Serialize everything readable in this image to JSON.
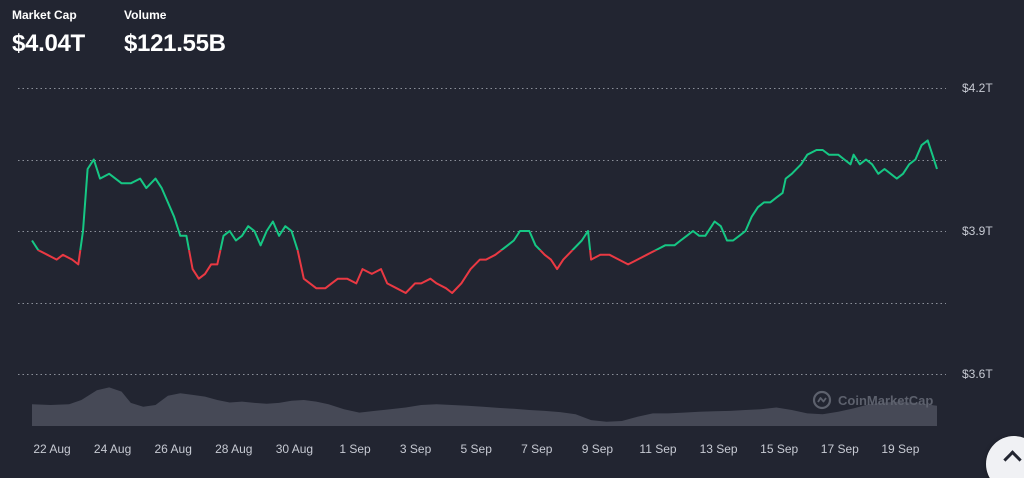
{
  "stats": {
    "market_cap_label": "Market Cap",
    "market_cap_value": "$4.04T",
    "volume_label": "Volume",
    "volume_value": "$121.55B"
  },
  "watermark": "CoinMarketCap",
  "colors": {
    "background": "#222531",
    "up": "#16c784",
    "down": "#ea3943",
    "grid": "#b8bcc6",
    "axis_text": "#c7cad3",
    "volume": "#4a4e5b"
  },
  "icons": {
    "logo": "coinmarketcap-logo-icon",
    "scroll_top": "chevron-up-icon"
  },
  "chart_data": {
    "type": "line",
    "baseline": 3.86,
    "ylim": [
      3.6,
      4.2
    ],
    "y_ticks": [
      3.6,
      3.9,
      4.2
    ],
    "y_tick_labels": [
      "$3.6T",
      "$3.9T",
      "$4.2T"
    ],
    "x_tick_labels": [
      "22 Aug",
      "24 Aug",
      "26 Aug",
      "28 Aug",
      "30 Aug",
      "1 Sep",
      "3 Sep",
      "5 Sep",
      "7 Sep",
      "9 Sep",
      "11 Sep",
      "13 Sep",
      "15 Sep",
      "17 Sep",
      "19 Sep"
    ],
    "x_domain": [
      21.4,
      50.7
    ],
    "grid": true,
    "series": [
      {
        "values_unit": "trillion USD",
        "points": [
          [
            21.4,
            3.88
          ],
          [
            21.6,
            3.86
          ],
          [
            21.9,
            3.85
          ],
          [
            22.2,
            3.84
          ],
          [
            22.4,
            3.85
          ],
          [
            22.7,
            3.84
          ],
          [
            22.9,
            3.83
          ],
          [
            23.05,
            3.9
          ],
          [
            23.2,
            4.03
          ],
          [
            23.4,
            4.05
          ],
          [
            23.6,
            4.01
          ],
          [
            23.9,
            4.02
          ],
          [
            24.3,
            4.0
          ],
          [
            24.6,
            4.0
          ],
          [
            24.9,
            4.01
          ],
          [
            25.1,
            3.99
          ],
          [
            25.4,
            4.01
          ],
          [
            25.6,
            3.99
          ],
          [
            25.8,
            3.96
          ],
          [
            26.0,
            3.93
          ],
          [
            26.2,
            3.89
          ],
          [
            26.4,
            3.89
          ],
          [
            26.6,
            3.82
          ],
          [
            26.8,
            3.8
          ],
          [
            27.0,
            3.81
          ],
          [
            27.2,
            3.83
          ],
          [
            27.4,
            3.83
          ],
          [
            27.6,
            3.89
          ],
          [
            27.8,
            3.9
          ],
          [
            28.0,
            3.88
          ],
          [
            28.2,
            3.89
          ],
          [
            28.4,
            3.91
          ],
          [
            28.6,
            3.9
          ],
          [
            28.8,
            3.87
          ],
          [
            29.0,
            3.9
          ],
          [
            29.2,
            3.92
          ],
          [
            29.4,
            3.89
          ],
          [
            29.6,
            3.91
          ],
          [
            29.8,
            3.9
          ],
          [
            30.0,
            3.86
          ],
          [
            30.2,
            3.8
          ],
          [
            30.4,
            3.79
          ],
          [
            30.6,
            3.78
          ],
          [
            30.9,
            3.78
          ],
          [
            31.1,
            3.79
          ],
          [
            31.3,
            3.8
          ],
          [
            31.6,
            3.8
          ],
          [
            31.9,
            3.79
          ],
          [
            32.1,
            3.82
          ],
          [
            32.4,
            3.81
          ],
          [
            32.7,
            3.82
          ],
          [
            32.9,
            3.79
          ],
          [
            33.2,
            3.78
          ],
          [
            33.5,
            3.77
          ],
          [
            33.8,
            3.79
          ],
          [
            34.0,
            3.79
          ],
          [
            34.3,
            3.8
          ],
          [
            34.5,
            3.79
          ],
          [
            34.8,
            3.78
          ],
          [
            35.0,
            3.77
          ],
          [
            35.3,
            3.79
          ],
          [
            35.6,
            3.82
          ],
          [
            35.9,
            3.84
          ],
          [
            36.1,
            3.84
          ],
          [
            36.4,
            3.85
          ],
          [
            36.6,
            3.86
          ],
          [
            36.8,
            3.87
          ],
          [
            37.0,
            3.88
          ],
          [
            37.2,
            3.9
          ],
          [
            37.5,
            3.9
          ],
          [
            37.7,
            3.87
          ],
          [
            38.0,
            3.85
          ],
          [
            38.2,
            3.84
          ],
          [
            38.4,
            3.82
          ],
          [
            38.6,
            3.84
          ],
          [
            38.9,
            3.86
          ],
          [
            39.2,
            3.88
          ],
          [
            39.4,
            3.9
          ],
          [
            39.5,
            3.84
          ],
          [
            39.8,
            3.85
          ],
          [
            40.1,
            3.85
          ],
          [
            40.4,
            3.84
          ],
          [
            40.7,
            3.83
          ],
          [
            41.0,
            3.84
          ],
          [
            41.3,
            3.85
          ],
          [
            41.6,
            3.86
          ],
          [
            41.9,
            3.87
          ],
          [
            42.2,
            3.87
          ],
          [
            42.4,
            3.88
          ],
          [
            42.6,
            3.89
          ],
          [
            42.8,
            3.9
          ],
          [
            43.0,
            3.89
          ],
          [
            43.2,
            3.89
          ],
          [
            43.5,
            3.92
          ],
          [
            43.7,
            3.91
          ],
          [
            43.9,
            3.88
          ],
          [
            44.1,
            3.88
          ],
          [
            44.3,
            3.89
          ],
          [
            44.5,
            3.9
          ],
          [
            44.7,
            3.93
          ],
          [
            44.9,
            3.95
          ],
          [
            45.1,
            3.96
          ],
          [
            45.3,
            3.96
          ],
          [
            45.5,
            3.97
          ],
          [
            45.7,
            3.98
          ],
          [
            45.8,
            4.01
          ],
          [
            46.0,
            4.02
          ],
          [
            46.3,
            4.04
          ],
          [
            46.5,
            4.06
          ],
          [
            46.8,
            4.07
          ],
          [
            47.0,
            4.07
          ],
          [
            47.2,
            4.06
          ],
          [
            47.5,
            4.06
          ],
          [
            47.7,
            4.05
          ],
          [
            47.9,
            4.04
          ],
          [
            48.0,
            4.06
          ],
          [
            48.2,
            4.04
          ],
          [
            48.4,
            4.05
          ],
          [
            48.6,
            4.04
          ],
          [
            48.8,
            4.02
          ],
          [
            49.0,
            4.03
          ],
          [
            49.2,
            4.02
          ],
          [
            49.4,
            4.01
          ],
          [
            49.6,
            4.02
          ],
          [
            49.8,
            4.04
          ],
          [
            50.0,
            4.05
          ],
          [
            50.2,
            4.08
          ],
          [
            50.4,
            4.09
          ],
          [
            50.55,
            4.06
          ],
          [
            50.7,
            4.03
          ]
        ]
      }
    ],
    "volume": [
      [
        21.4,
        0.52
      ],
      [
        22.0,
        0.5
      ],
      [
        22.6,
        0.52
      ],
      [
        23.0,
        0.62
      ],
      [
        23.5,
        0.85
      ],
      [
        23.9,
        0.92
      ],
      [
        24.3,
        0.82
      ],
      [
        24.6,
        0.55
      ],
      [
        25.0,
        0.46
      ],
      [
        25.4,
        0.5
      ],
      [
        25.8,
        0.72
      ],
      [
        26.2,
        0.78
      ],
      [
        26.6,
        0.74
      ],
      [
        27.0,
        0.7
      ],
      [
        27.4,
        0.62
      ],
      [
        27.8,
        0.56
      ],
      [
        28.2,
        0.58
      ],
      [
        28.6,
        0.55
      ],
      [
        29.0,
        0.53
      ],
      [
        29.4,
        0.55
      ],
      [
        29.8,
        0.6
      ],
      [
        30.2,
        0.62
      ],
      [
        30.6,
        0.58
      ],
      [
        31.0,
        0.52
      ],
      [
        31.5,
        0.4
      ],
      [
        32.0,
        0.32
      ],
      [
        32.5,
        0.36
      ],
      [
        33.0,
        0.4
      ],
      [
        33.5,
        0.44
      ],
      [
        34.0,
        0.5
      ],
      [
        34.5,
        0.52
      ],
      [
        35.0,
        0.5
      ],
      [
        35.5,
        0.48
      ],
      [
        36.0,
        0.46
      ],
      [
        36.5,
        0.43
      ],
      [
        37.0,
        0.41
      ],
      [
        37.5,
        0.38
      ],
      [
        38.0,
        0.36
      ],
      [
        38.5,
        0.33
      ],
      [
        39.0,
        0.28
      ],
      [
        39.5,
        0.14
      ],
      [
        40.0,
        0.1
      ],
      [
        40.5,
        0.12
      ],
      [
        41.0,
        0.22
      ],
      [
        41.5,
        0.3
      ],
      [
        42.0,
        0.3
      ],
      [
        42.5,
        0.32
      ],
      [
        43.0,
        0.34
      ],
      [
        43.5,
        0.35
      ],
      [
        44.0,
        0.36
      ],
      [
        44.5,
        0.38
      ],
      [
        45.0,
        0.4
      ],
      [
        45.5,
        0.44
      ],
      [
        46.0,
        0.38
      ],
      [
        46.5,
        0.3
      ],
      [
        47.0,
        0.28
      ],
      [
        47.5,
        0.34
      ],
      [
        48.0,
        0.42
      ],
      [
        48.5,
        0.52
      ],
      [
        49.0,
        0.56
      ],
      [
        49.5,
        0.58
      ],
      [
        50.0,
        0.55
      ],
      [
        50.7,
        0.48
      ]
    ]
  }
}
